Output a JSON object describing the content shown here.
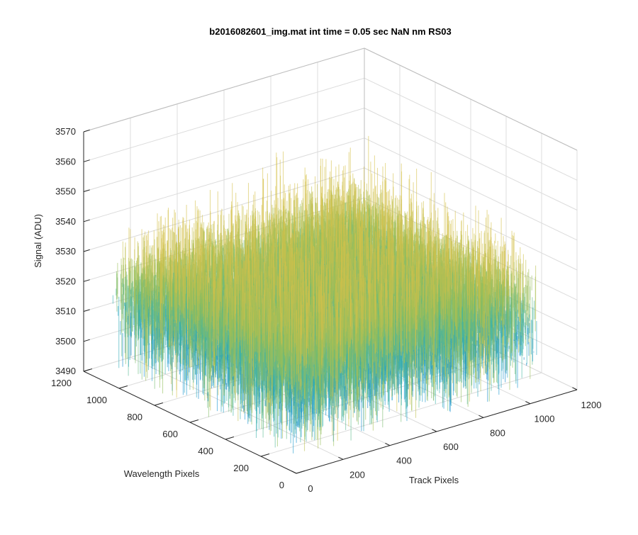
{
  "chart_data": {
    "type": "surface",
    "title": "b2016082601_img.mat int time = 0.05 sec  NaN nm RS03",
    "xlabel": "Track Pixels",
    "ylabel": "Wavelength Pixels",
    "zlabel": "Signal (ADU)",
    "xlim": [
      0,
      1200
    ],
    "ylim": [
      0,
      1200
    ],
    "zlim": [
      3490,
      3570
    ],
    "xticks": [
      "0",
      "200",
      "400",
      "600",
      "800",
      "1000",
      "1200"
    ],
    "yticks": [
      "0",
      "200",
      "400",
      "600",
      "800",
      "1000",
      "1200"
    ],
    "zticks": [
      "3490",
      "3500",
      "3510",
      "3520",
      "3530",
      "3540",
      "3550",
      "3560",
      "3570"
    ],
    "data_extent": {
      "x": [
        1,
        1024
      ],
      "y": [
        1,
        1024
      ]
    },
    "mean_signal": 3518,
    "signal_range": [
      3495,
      3565
    ],
    "grid": true,
    "colormap": "parula",
    "colors": {
      "low": "#0072BD",
      "mid": "#3EB5A8",
      "high": "#D6C14A"
    }
  }
}
